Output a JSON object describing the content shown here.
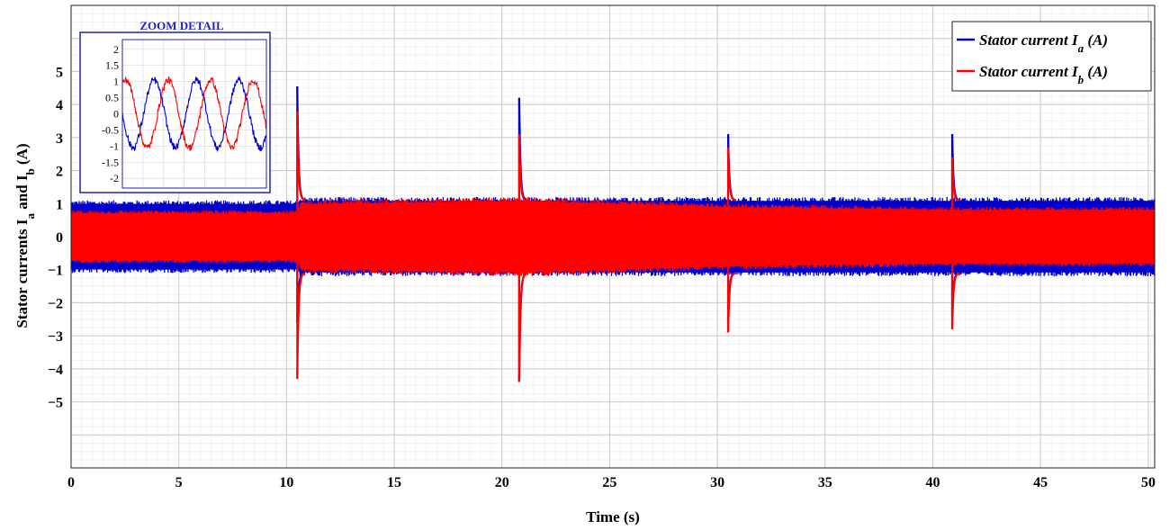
{
  "chart_data": [
    {
      "type": "line",
      "xlabel": "Time (s)",
      "ylabel": {
        "main": "Stator currents I",
        "sub_a": "a",
        "mid": " and I",
        "sub_b": "b",
        "end": " (A)"
      },
      "xlim": [
        0,
        50.3
      ],
      "ylim": [
        -7,
        7
      ],
      "xticks": [
        0,
        5,
        10,
        15,
        20,
        25,
        30,
        35,
        40,
        45,
        50
      ],
      "yticks": [
        -5,
        -4,
        -3,
        -2,
        -1,
        0,
        1,
        2,
        3,
        4,
        5
      ],
      "grid": true,
      "legend_position": "top-right",
      "series": [
        {
          "name": "Stator current I_a (A)",
          "legend": {
            "main": "Stator current I",
            "sub": "a",
            "end": " (A)"
          },
          "color": "#0000cc",
          "band_amplitude": 1.0,
          "band_envelope": [
            [
              0,
              1.1
            ],
            [
              10.5,
              1.1
            ],
            [
              10.6,
              1.2
            ],
            [
              21,
              1.2
            ],
            [
              30.6,
              1.2
            ],
            [
              41,
              1.2
            ],
            [
              50.3,
              1.2
            ]
          ],
          "transients": [
            {
              "t": 10.5,
              "peak": 4.55,
              "min": -2.6
            },
            {
              "t": 20.8,
              "peak": 4.2,
              "min": -4.4
            },
            {
              "t": 30.5,
              "peak": 3.1,
              "min": -2.6
            },
            {
              "t": 40.9,
              "peak": 3.1,
              "min": -2.4
            }
          ]
        },
        {
          "name": "Stator current I_b (A)",
          "legend": {
            "main": "Stator current I",
            "sub": "b",
            "end": " (A)"
          },
          "color": "#ff0000",
          "band_amplitude": 1.0,
          "band_envelope": [
            [
              0,
              0.8
            ],
            [
              10.5,
              0.8
            ],
            [
              10.7,
              1.1
            ],
            [
              21,
              1.2
            ],
            [
              30.6,
              1.0
            ],
            [
              41,
              0.9
            ],
            [
              50.3,
              0.9
            ]
          ],
          "transients": [
            {
              "t": 10.5,
              "peak": 3.8,
              "min": -4.3
            },
            {
              "t": 20.8,
              "peak": 3.1,
              "min": -4.4
            },
            {
              "t": 30.5,
              "peak": 2.7,
              "min": -2.9
            },
            {
              "t": 40.9,
              "peak": 2.4,
              "min": -2.8
            }
          ]
        }
      ]
    },
    {
      "type": "line",
      "title": "ZOOM DETAIL",
      "ylim": [
        -2.3,
        2.3
      ],
      "yticks": [
        -2,
        -1.5,
        -1,
        -0.5,
        0,
        0.5,
        1,
        1.5,
        2
      ],
      "ytick_labels": [
        "-2",
        "-1.5",
        "-1",
        "-0.5",
        "0",
        "0.5",
        "1",
        "1.5",
        "2"
      ],
      "grid": true,
      "series": [
        {
          "name": "I_a",
          "color": "#0000cc",
          "amplitude": 1.05,
          "cycles": 3.4,
          "phase_deg": 180
        },
        {
          "name": "I_b",
          "color": "#ff0000",
          "amplitude": 1.05,
          "cycles": 3.4,
          "phase_deg": 60
        }
      ]
    }
  ]
}
